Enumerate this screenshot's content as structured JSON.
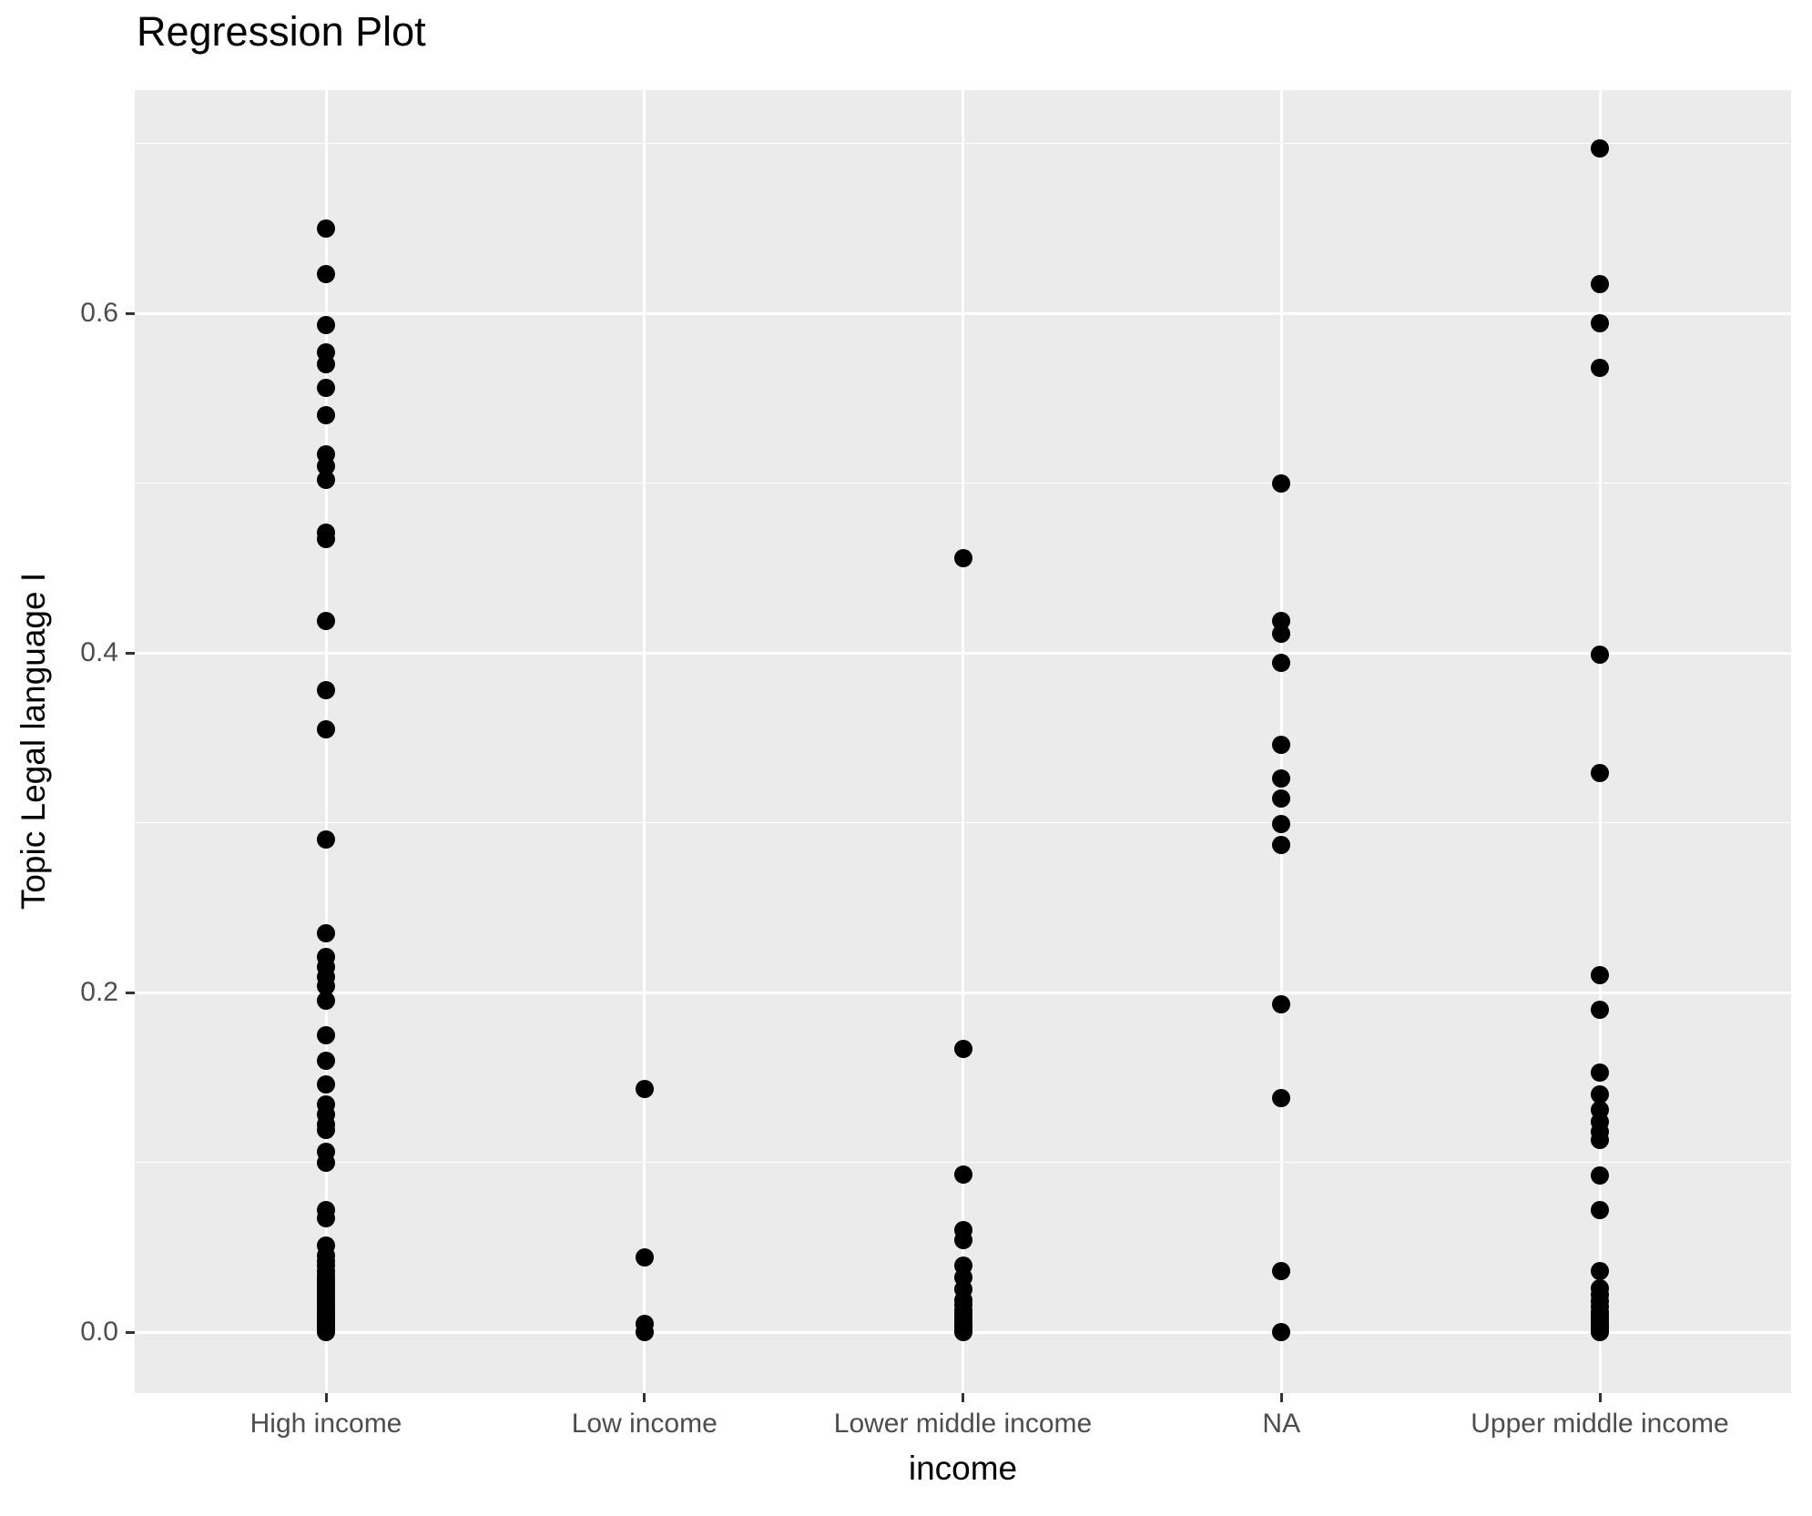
{
  "colors": {
    "panel_background": "#EBEBEB",
    "gridline": "#FFFFFF",
    "point": "#000000",
    "tick_label": "#4D4D4D",
    "tick_mark": "#333333",
    "title_text": "#000000"
  },
  "chart_data": {
    "type": "scatter",
    "title": "Regression Plot",
    "xlabel": "income",
    "ylabel": "Topic Legal language I",
    "grid": true,
    "legend": "none",
    "categories": [
      "High income",
      "Low income",
      "Lower middle income",
      "NA",
      "Upper middle income"
    ],
    "y_ticks": [
      0.0,
      0.2,
      0.4,
      0.6
    ],
    "y_tick_labels": [
      "0.0",
      "0.2",
      "0.4",
      "0.6"
    ],
    "y_minor_ticks": [
      0.1,
      0.3,
      0.5,
      0.7
    ],
    "ylim": [
      -0.036,
      0.731
    ],
    "series": [
      {
        "name": "High income",
        "values": [
          0.65,
          0.623,
          0.593,
          0.577,
          0.57,
          0.556,
          0.54,
          0.517,
          0.51,
          0.502,
          0.471,
          0.467,
          0.419,
          0.378,
          0.355,
          0.29,
          0.235,
          0.221,
          0.215,
          0.209,
          0.204,
          0.195,
          0.175,
          0.16,
          0.146,
          0.134,
          0.128,
          0.122,
          0.119,
          0.106,
          0.1,
          0.072,
          0.067,
          0.051,
          0.045,
          0.042,
          0.039,
          0.036,
          0.033,
          0.031,
          0.029,
          0.027,
          0.025,
          0.023,
          0.021,
          0.019,
          0.017,
          0.016,
          0.014,
          0.013,
          0.011,
          0.01,
          0.009,
          0.008,
          0.007,
          0.006,
          0.005,
          0.004,
          0.003,
          0.002,
          0.001,
          0.0
        ]
      },
      {
        "name": "Low income",
        "values": [
          0.143,
          0.044,
          0.005,
          0.0
        ]
      },
      {
        "name": "Lower middle income",
        "values": [
          0.456,
          0.167,
          0.093,
          0.06,
          0.054,
          0.039,
          0.032,
          0.025,
          0.019,
          0.016,
          0.013,
          0.011,
          0.009,
          0.007,
          0.005,
          0.004,
          0.003,
          0.002,
          0.001,
          0.0
        ]
      },
      {
        "name": "NA",
        "values": [
          0.5,
          0.419,
          0.411,
          0.394,
          0.346,
          0.326,
          0.314,
          0.299,
          0.287,
          0.193,
          0.138,
          0.036,
          0.0
        ]
      },
      {
        "name": "Upper middle income",
        "values": [
          0.697,
          0.617,
          0.594,
          0.568,
          0.399,
          0.329,
          0.21,
          0.19,
          0.153,
          0.14,
          0.131,
          0.124,
          0.118,
          0.113,
          0.092,
          0.072,
          0.036,
          0.026,
          0.022,
          0.018,
          0.015,
          0.012,
          0.01,
          0.008,
          0.006,
          0.005,
          0.004,
          0.003,
          0.002,
          0.001,
          0.0
        ]
      }
    ]
  }
}
